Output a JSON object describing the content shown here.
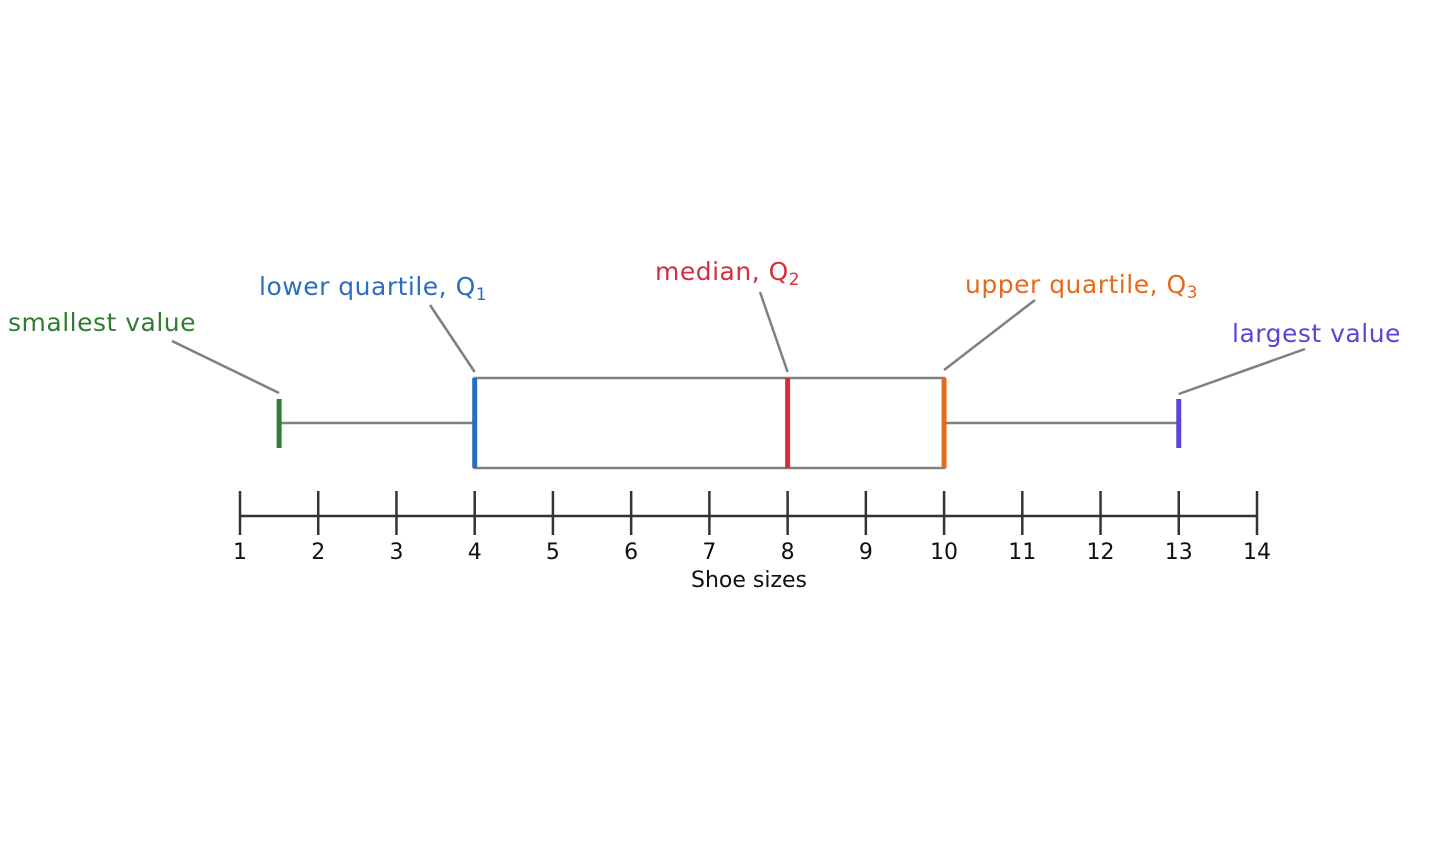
{
  "chart_data": {
    "type": "box",
    "xlabel": "Shoe sizes",
    "xlim": [
      1,
      14
    ],
    "ticks": [
      1,
      2,
      3,
      4,
      5,
      6,
      7,
      8,
      9,
      10,
      11,
      12,
      13,
      14
    ],
    "box": {
      "min": 1.5,
      "q1": 4,
      "median": 8,
      "q3": 10,
      "max": 13
    },
    "annotations": {
      "min": {
        "text": "smallest value",
        "sub": "",
        "color": "#2e7d32"
      },
      "q1": {
        "text": "lower quartile,  Q",
        "sub": "1",
        "color": "#2a6ebf"
      },
      "median": {
        "text": "median,  Q",
        "sub": "2",
        "color": "#d32f3f"
      },
      "q3": {
        "text": "upper quartile,  Q",
        "sub": "3",
        "color": "#e66a1c"
      },
      "max": {
        "text": "largest value",
        "sub": "",
        "color": "#5a45d8"
      }
    },
    "line_color": "#808080",
    "axis_color": "#333333"
  }
}
